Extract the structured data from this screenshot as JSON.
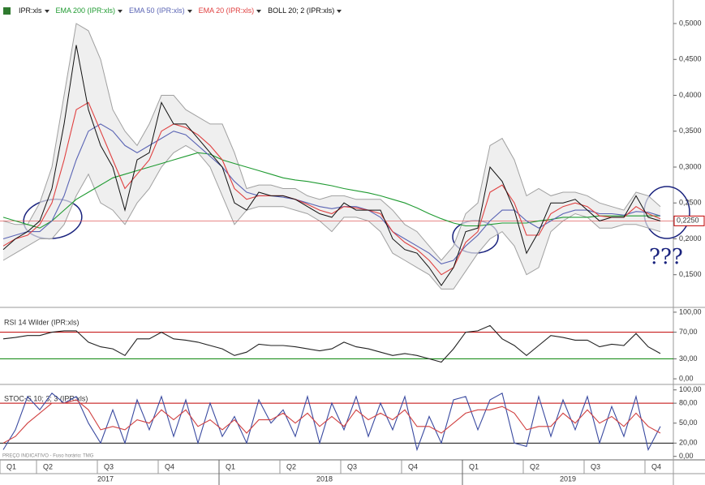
{
  "chart_data": [
    {
      "type": "line",
      "series": [
        {
          "name": "IPR:xls",
          "color": "#111111",
          "values": [
            0.185,
            0.2,
            0.21,
            0.225,
            0.27,
            0.36,
            0.47,
            0.38,
            0.33,
            0.3,
            0.24,
            0.31,
            0.32,
            0.39,
            0.36,
            0.36,
            0.34,
            0.32,
            0.3,
            0.25,
            0.24,
            0.265,
            0.26,
            0.26,
            0.255,
            0.245,
            0.235,
            0.23,
            0.25,
            0.24,
            0.24,
            0.24,
            0.2,
            0.185,
            0.18,
            0.16,
            0.135,
            0.16,
            0.21,
            0.215,
            0.3,
            0.28,
            0.24,
            0.18,
            0.21,
            0.25,
            0.25,
            0.255,
            0.24,
            0.225,
            0.23,
            0.23,
            0.26,
            0.23,
            0.225
          ]
        },
        {
          "name": "EMA 200 (IPR:xls)",
          "color": "#1e9a30",
          "values": [
            0.23,
            0.225,
            0.22,
            0.215,
            0.225,
            0.24,
            0.255,
            0.265,
            0.275,
            0.285,
            0.29,
            0.295,
            0.3,
            0.305,
            0.31,
            0.315,
            0.32,
            0.318,
            0.31,
            0.305,
            0.3,
            0.295,
            0.29,
            0.285,
            0.282,
            0.28,
            0.277,
            0.274,
            0.27,
            0.267,
            0.264,
            0.26,
            0.255,
            0.25,
            0.243,
            0.235,
            0.228,
            0.222,
            0.218,
            0.218,
            0.22,
            0.222,
            0.222,
            0.222,
            0.225,
            0.227,
            0.23,
            0.23,
            0.23,
            0.232,
            0.232,
            0.232,
            0.232,
            0.232,
            0.232
          ]
        },
        {
          "name": "EMA 50 (IPR:xls)",
          "color": "#5a64b4",
          "values": [
            0.2,
            0.205,
            0.21,
            0.21,
            0.225,
            0.26,
            0.31,
            0.35,
            0.36,
            0.35,
            0.33,
            0.32,
            0.33,
            0.34,
            0.35,
            0.345,
            0.33,
            0.315,
            0.3,
            0.28,
            0.265,
            0.26,
            0.26,
            0.258,
            0.255,
            0.25,
            0.245,
            0.242,
            0.245,
            0.245,
            0.24,
            0.23,
            0.21,
            0.2,
            0.19,
            0.18,
            0.165,
            0.17,
            0.19,
            0.205,
            0.225,
            0.24,
            0.24,
            0.225,
            0.215,
            0.225,
            0.235,
            0.24,
            0.24,
            0.235,
            0.235,
            0.233,
            0.238,
            0.237,
            0.232
          ]
        },
        {
          "name": "EMA 20 (IPR:xls)",
          "color": "#e04040",
          "values": [
            0.19,
            0.2,
            0.205,
            0.22,
            0.25,
            0.31,
            0.38,
            0.39,
            0.35,
            0.31,
            0.27,
            0.29,
            0.31,
            0.35,
            0.36,
            0.355,
            0.345,
            0.33,
            0.31,
            0.27,
            0.255,
            0.26,
            0.26,
            0.26,
            0.255,
            0.248,
            0.24,
            0.235,
            0.245,
            0.243,
            0.24,
            0.235,
            0.21,
            0.195,
            0.185,
            0.17,
            0.15,
            0.16,
            0.195,
            0.21,
            0.265,
            0.275,
            0.25,
            0.205,
            0.205,
            0.235,
            0.245,
            0.25,
            0.245,
            0.232,
            0.23,
            0.23,
            0.245,
            0.235,
            0.228
          ]
        }
      ],
      "band": {
        "name": "BOLL 20; 2 (IPR:xls)",
        "color": "#a0a0a0",
        "upper": [
          0.225,
          0.22,
          0.22,
          0.25,
          0.3,
          0.4,
          0.5,
          0.49,
          0.45,
          0.38,
          0.35,
          0.33,
          0.36,
          0.4,
          0.4,
          0.38,
          0.37,
          0.36,
          0.36,
          0.32,
          0.27,
          0.275,
          0.275,
          0.27,
          0.27,
          0.26,
          0.255,
          0.26,
          0.26,
          0.255,
          0.255,
          0.255,
          0.24,
          0.22,
          0.21,
          0.19,
          0.17,
          0.19,
          0.235,
          0.25,
          0.33,
          0.34,
          0.31,
          0.26,
          0.27,
          0.26,
          0.265,
          0.265,
          0.26,
          0.25,
          0.245,
          0.24,
          0.265,
          0.26,
          0.245
        ],
        "lower": [
          0.17,
          0.18,
          0.19,
          0.2,
          0.2,
          0.22,
          0.26,
          0.29,
          0.25,
          0.24,
          0.22,
          0.25,
          0.27,
          0.3,
          0.32,
          0.33,
          0.32,
          0.3,
          0.26,
          0.22,
          0.24,
          0.245,
          0.245,
          0.245,
          0.24,
          0.235,
          0.225,
          0.21,
          0.23,
          0.23,
          0.225,
          0.21,
          0.18,
          0.17,
          0.16,
          0.15,
          0.13,
          0.13,
          0.155,
          0.18,
          0.2,
          0.21,
          0.19,
          0.15,
          0.16,
          0.21,
          0.225,
          0.235,
          0.23,
          0.215,
          0.215,
          0.22,
          0.22,
          0.215,
          0.21
        ]
      },
      "ylim": [
        0.1056,
        0.5328
      ],
      "yticks": [
        {
          "value": 0.15,
          "label": "0,1500"
        },
        {
          "value": 0.2,
          "label": "0,2000"
        },
        {
          "value": 0.25,
          "label": "0,2500"
        },
        {
          "value": 0.3,
          "label": "0,3000"
        },
        {
          "value": 0.35,
          "label": "0,3500"
        },
        {
          "value": 0.4,
          "label": "0,4000"
        },
        {
          "value": 0.45,
          "label": "0,4500"
        },
        {
          "value": 0.5,
          "label": "0,5000"
        }
      ],
      "last_value": {
        "value": 0.225,
        "label": "0,2250"
      },
      "annotation": "???"
    },
    {
      "type": "line",
      "title": "RSI 14 Wilder (IPR:xls)",
      "series": [
        {
          "name": "RSI",
          "color": "#222222",
          "values": [
            60,
            62,
            65,
            65,
            70,
            72,
            72,
            55,
            48,
            45,
            35,
            60,
            60,
            70,
            60,
            58,
            55,
            50,
            45,
            35,
            40,
            52,
            50,
            50,
            48,
            45,
            42,
            45,
            55,
            48,
            45,
            40,
            35,
            38,
            35,
            30,
            25,
            45,
            70,
            72,
            80,
            60,
            50,
            35,
            50,
            65,
            62,
            58,
            58,
            48,
            52,
            50,
            68,
            48,
            38
          ]
        }
      ],
      "levels": [
        {
          "value": 70,
          "color": "#c00000"
        },
        {
          "value": 30,
          "color": "#008000"
        }
      ],
      "ylim": [
        -6,
        106
      ],
      "yticks": [
        {
          "value": 0,
          "label": "0,00"
        },
        {
          "value": 30,
          "label": "30,00"
        },
        {
          "value": 70,
          "label": "70,00"
        },
        {
          "value": 100,
          "label": "100,00"
        }
      ]
    },
    {
      "type": "line",
      "title": "STOC-S 10; 3; 3 (IPR:xls)",
      "series": [
        {
          "name": "%K",
          "color": "#3a4aa0",
          "values": [
            10,
            40,
            90,
            70,
            95,
            80,
            90,
            50,
            20,
            70,
            20,
            85,
            40,
            90,
            30,
            85,
            20,
            80,
            30,
            60,
            20,
            85,
            50,
            70,
            30,
            90,
            20,
            80,
            40,
            90,
            30,
            80,
            40,
            90,
            10,
            60,
            20,
            85,
            90,
            40,
            85,
            95,
            20,
            15,
            90,
            30,
            85,
            40,
            90,
            20,
            75,
            30,
            90,
            10,
            45
          ]
        },
        {
          "name": "%D",
          "color": "#d04040",
          "values": [
            20,
            30,
            50,
            65,
            80,
            80,
            85,
            70,
            40,
            45,
            40,
            55,
            50,
            70,
            55,
            70,
            45,
            55,
            40,
            55,
            35,
            55,
            55,
            65,
            50,
            65,
            45,
            60,
            45,
            70,
            55,
            65,
            55,
            70,
            45,
            45,
            35,
            50,
            65,
            70,
            70,
            75,
            65,
            40,
            45,
            45,
            65,
            50,
            70,
            50,
            60,
            45,
            65,
            45,
            35
          ]
        }
      ],
      "levels": [
        {
          "value": 80,
          "color": "#c00000"
        },
        {
          "value": 20,
          "color": "#111111"
        }
      ],
      "ylim": [
        -4,
        107
      ],
      "yticks": [
        {
          "value": 0,
          "label": "0,00"
        },
        {
          "value": 20,
          "label": "20,00"
        },
        {
          "value": 50,
          "label": "50,00"
        },
        {
          "value": 80,
          "label": "80,00"
        },
        {
          "value": 100,
          "label": "100,00"
        }
      ],
      "note": "PREÇO INDICATIVO - Fuso horário: TMG",
      "categories": [
        "Q1",
        null,
        null,
        "Q2",
        null,
        null,
        null,
        null,
        "Q3",
        null,
        null,
        null,
        null,
        "Q4",
        null,
        null,
        null,
        null,
        "Q1",
        null,
        null,
        null,
        null,
        "Q2",
        null,
        null,
        null,
        null,
        "Q3",
        null,
        null,
        null,
        null,
        "Q4",
        null,
        null,
        null,
        null,
        "Q1",
        null,
        null,
        null,
        null,
        "Q2",
        null,
        null,
        null,
        null,
        "Q3",
        null,
        null,
        null,
        null,
        "Q4",
        null
      ],
      "years": [
        null,
        null,
        null,
        null,
        null,
        null,
        null,
        null,
        "2017",
        null,
        null,
        null,
        null,
        null,
        null,
        null,
        null,
        null,
        null,
        null,
        null,
        null,
        null,
        null,
        null,
        null,
        "2018",
        null,
        null,
        null,
        null,
        null,
        null,
        null,
        null,
        null,
        null,
        null,
        null,
        null,
        null,
        null,
        null,
        null,
        null,
        null,
        "2019",
        null,
        null,
        null,
        null,
        null,
        null,
        null,
        null
      ]
    }
  ]
}
